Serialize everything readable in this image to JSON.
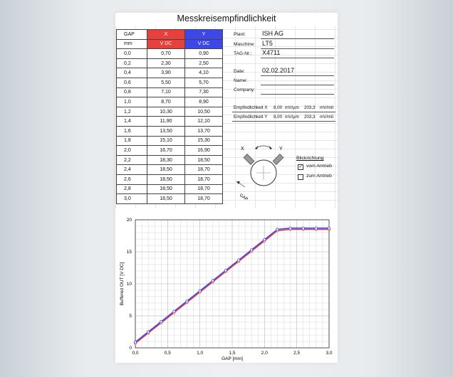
{
  "sheet": {
    "title": "Messkreisempfindlichkeit"
  },
  "table": {
    "headers": [
      "GAP",
      "X",
      "Y"
    ],
    "units": [
      "mm",
      "V DC",
      "V DC"
    ],
    "rows": [
      [
        "0,0",
        "0,70",
        "0,90"
      ],
      [
        "0,2",
        "2,30",
        "2,50"
      ],
      [
        "0,4",
        "3,90",
        "4,10"
      ],
      [
        "0,6",
        "5,50",
        "5,70"
      ],
      [
        "0,8",
        "7,10",
        "7,30"
      ],
      [
        "1,0",
        "8,70",
        "8,90"
      ],
      [
        "1,2",
        "10,30",
        "10,50"
      ],
      [
        "1,4",
        "11,90",
        "12,10"
      ],
      [
        "1,6",
        "13,50",
        "13,70"
      ],
      [
        "1,8",
        "15,10",
        "15,30"
      ],
      [
        "2,0",
        "16,70",
        "16,90"
      ],
      [
        "2,2",
        "18,30",
        "18,50"
      ],
      [
        "2,4",
        "18,50",
        "18,70"
      ],
      [
        "2,6",
        "18,50",
        "18,70"
      ],
      [
        "2,8",
        "18,50",
        "18,70"
      ],
      [
        "3,0",
        "18,50",
        "18,70"
      ]
    ],
    "colors": {
      "x_header": "#e8403c",
      "y_header": "#3e48e8"
    }
  },
  "info": {
    "plant_label": "Plant:",
    "plant_value": "ISH AG",
    "machine_label": "Maschine:",
    "machine_value": "LT5",
    "tag_label": "TAG-Nr.:",
    "tag_value": "X4711",
    "date_label": "Date:",
    "date_value": "02.02.2017",
    "name_label": "Name:",
    "name_value": "",
    "company_label": "Company:",
    "company_value": ""
  },
  "sensitivity": {
    "x_label": "Empfindlichkeit X",
    "x_value": "8,00",
    "x_unit": "mV/µm",
    "x_value2": "203,3",
    "x_unit2": "mV/mil",
    "y_label": "Empfindlichkeit Y",
    "y_value": "8,00",
    "y_unit": "mV/µm",
    "y_value2": "203,3",
    "y_unit2": "mV/mil"
  },
  "diagram": {
    "x_probe": "X",
    "y_probe": "Y",
    "gap": "GAP",
    "direction_title": "Blickrichtung",
    "option1": "vom Antrieb",
    "option1_checked": true,
    "option2": "zum Antrieb",
    "option2_checked": false
  },
  "chart_data": {
    "type": "line",
    "xlabel": "GAP  [mm]",
    "ylabel": "Buffered OUT [V DC]",
    "xlim": [
      0,
      3
    ],
    "ylim": [
      0,
      20
    ],
    "xticks": [
      "0,0",
      "0,5",
      "1,0",
      "1,5",
      "2,0",
      "2,5",
      "3,0"
    ],
    "yticks": [
      "0",
      "5",
      "10",
      "15",
      "20"
    ],
    "x": [
      0,
      0.2,
      0.4,
      0.6,
      0.8,
      1.0,
      1.2,
      1.4,
      1.6,
      1.8,
      2.0,
      2.2,
      2.4,
      2.6,
      2.8,
      3.0
    ],
    "series": [
      {
        "name": "X",
        "color": "#e8403c",
        "values": [
          0.7,
          2.3,
          3.9,
          5.5,
          7.1,
          8.7,
          10.3,
          11.9,
          13.5,
          15.1,
          16.7,
          18.3,
          18.5,
          18.5,
          18.5,
          18.5
        ]
      },
      {
        "name": "Y",
        "color": "#3e48e8",
        "values": [
          0.9,
          2.5,
          4.1,
          5.7,
          7.3,
          8.9,
          10.5,
          12.1,
          13.7,
          15.3,
          16.9,
          18.5,
          18.7,
          18.7,
          18.7,
          18.7
        ]
      }
    ],
    "grid": true
  }
}
